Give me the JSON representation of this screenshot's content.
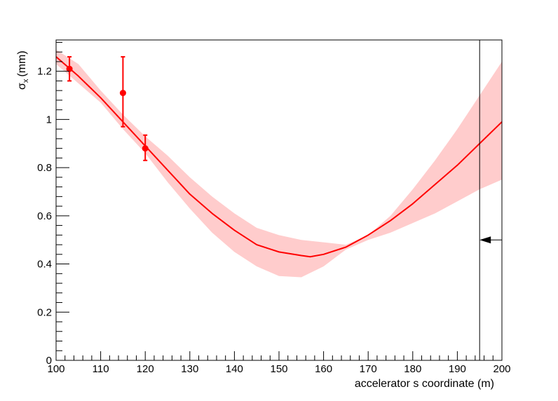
{
  "chart_data": {
    "type": "line",
    "xlabel": "accelerator s coordinate (m)",
    "ylabel_symbol": "σ",
    "ylabel_subscript": "x",
    "ylabel_unit": "(mm)",
    "xlim": [
      100,
      200
    ],
    "ylim": [
      0,
      1.33
    ],
    "grid": false,
    "xticks": [
      100,
      110,
      120,
      130,
      140,
      150,
      160,
      170,
      180,
      190,
      200
    ],
    "xtick_labels": [
      "100",
      "110",
      "120",
      "130",
      "140",
      "150",
      "160",
      "170",
      "180",
      "190",
      "200"
    ],
    "yticks": [
      0,
      0.2,
      0.4,
      0.6,
      0.8,
      1,
      1.2
    ],
    "ytick_labels": [
      "0",
      "0.2",
      "0.4",
      "0.6",
      "0.8",
      "1",
      "1.2"
    ],
    "series": [
      {
        "type": "line",
        "color": "#ff0000",
        "x": [
          100,
          105,
          110,
          115,
          120,
          125,
          130,
          135,
          140,
          145,
          150,
          155,
          157,
          160,
          165,
          170,
          175,
          180,
          185,
          190,
          195,
          200
        ],
        "y": [
          1.26,
          1.18,
          1.09,
          0.99,
          0.89,
          0.79,
          0.69,
          0.61,
          0.54,
          0.48,
          0.45,
          0.435,
          0.43,
          0.44,
          0.47,
          0.52,
          0.58,
          0.65,
          0.73,
          0.81,
          0.9,
          0.99
        ]
      },
      {
        "type": "band",
        "color": "#ffcccc",
        "x": [
          100,
          105,
          110,
          115,
          120,
          125,
          130,
          135,
          140,
          145,
          150,
          155,
          160,
          165,
          170,
          175,
          180,
          185,
          190,
          195,
          200
        ],
        "upper": [
          1.29,
          1.23,
          1.12,
          1.02,
          0.93,
          0.85,
          0.76,
          0.68,
          0.61,
          0.55,
          0.52,
          0.5,
          0.49,
          0.48,
          0.52,
          0.6,
          0.71,
          0.83,
          0.96,
          1.1,
          1.24
        ],
        "lower": [
          1.23,
          1.15,
          1.07,
          0.96,
          0.86,
          0.74,
          0.63,
          0.53,
          0.45,
          0.39,
          0.35,
          0.345,
          0.39,
          0.46,
          0.5,
          0.53,
          0.57,
          0.61,
          0.66,
          0.71,
          0.75
        ]
      },
      {
        "type": "points_with_errors",
        "color": "#ff0000",
        "points": [
          {
            "x": 103,
            "y": 1.21,
            "yerr_low": 0.05,
            "yerr_high": 0.05
          },
          {
            "x": 115,
            "y": 1.11,
            "yerr_low": 0.14,
            "yerr_high": 0.15
          },
          {
            "x": 120,
            "y": 0.88,
            "yerr_low": 0.05,
            "yerr_high": 0.055
          }
        ]
      }
    ],
    "annotations": [
      {
        "type": "vertical_line",
        "x": 195,
        "color": "#000000"
      },
      {
        "type": "arrow",
        "x_from": 200,
        "x_to": 195,
        "y": 0.5,
        "direction": "left",
        "color": "#000000"
      }
    ]
  }
}
